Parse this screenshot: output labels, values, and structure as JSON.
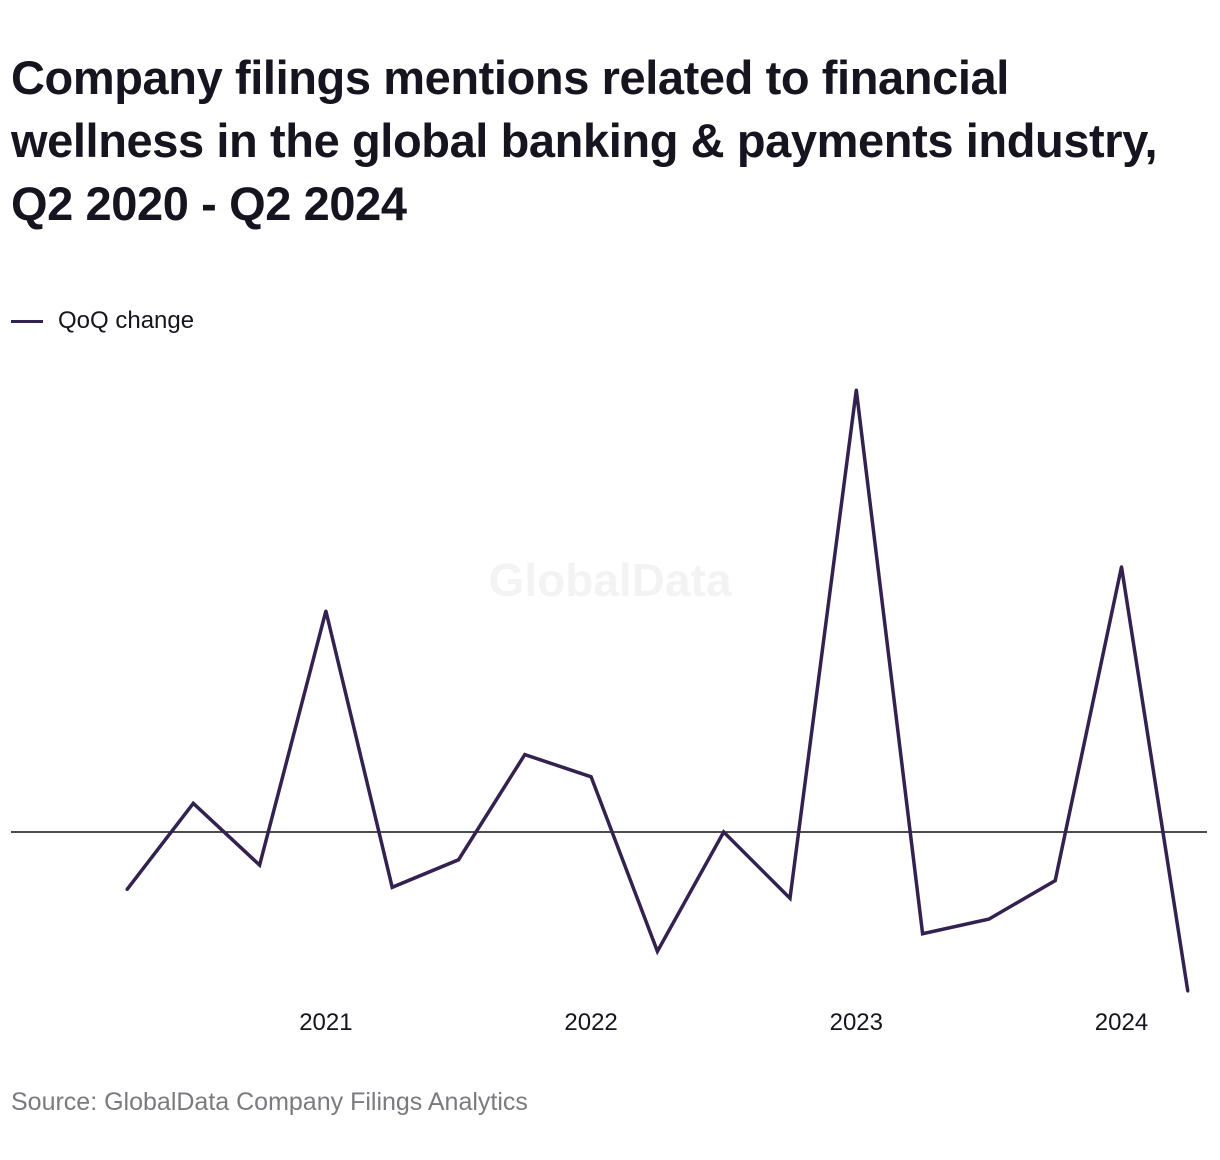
{
  "title": "Company filings mentions related to financial wellness in the global banking & payments industry, Q2 2020 - Q2 2024",
  "legend": {
    "label": "QoQ change"
  },
  "watermark": "GlobalData",
  "source": "Source: GlobalData Company Filings Analytics",
  "colors": {
    "line": "#33214f",
    "zero_line": "#111111",
    "text": "#16141f",
    "source": "#7a7a80"
  },
  "chart_data": {
    "type": "line",
    "title": "Company filings mentions related to financial wellness in the global banking & payments industry, Q2 2020 - Q2 2024",
    "xlabel": "",
    "ylabel": "",
    "x": [
      "Q2 2020",
      "Q3 2020",
      "Q4 2020",
      "Q1 2021",
      "Q2 2021",
      "Q3 2021",
      "Q4 2021",
      "Q1 2022",
      "Q2 2022",
      "Q3 2022",
      "Q4 2022",
      "Q1 2023",
      "Q2 2023",
      "Q3 2023",
      "Q4 2023",
      "Q1 2024",
      "Q2 2024"
    ],
    "x_tick_labels": [
      {
        "label": "2021",
        "at": "Q1 2021"
      },
      {
        "label": "2022",
        "at": "Q1 2022"
      },
      {
        "label": "2023",
        "at": "Q1 2023"
      },
      {
        "label": "2024",
        "at": "Q1 2024"
      }
    ],
    "y_axis_labels_shown": false,
    "zero_line": true,
    "grid": false,
    "legend_position": "top-left",
    "series": [
      {
        "name": "QoQ change",
        "values": [
          -0.13,
          0.065,
          -0.075,
          0.5,
          -0.125,
          -0.063,
          0.175,
          0.125,
          -0.27,
          0.0,
          -0.15,
          1.0,
          -0.23,
          -0.197,
          -0.11,
          0.6,
          -0.36
        ]
      }
    ],
    "ylim": [
      -0.4,
      1.0
    ]
  }
}
